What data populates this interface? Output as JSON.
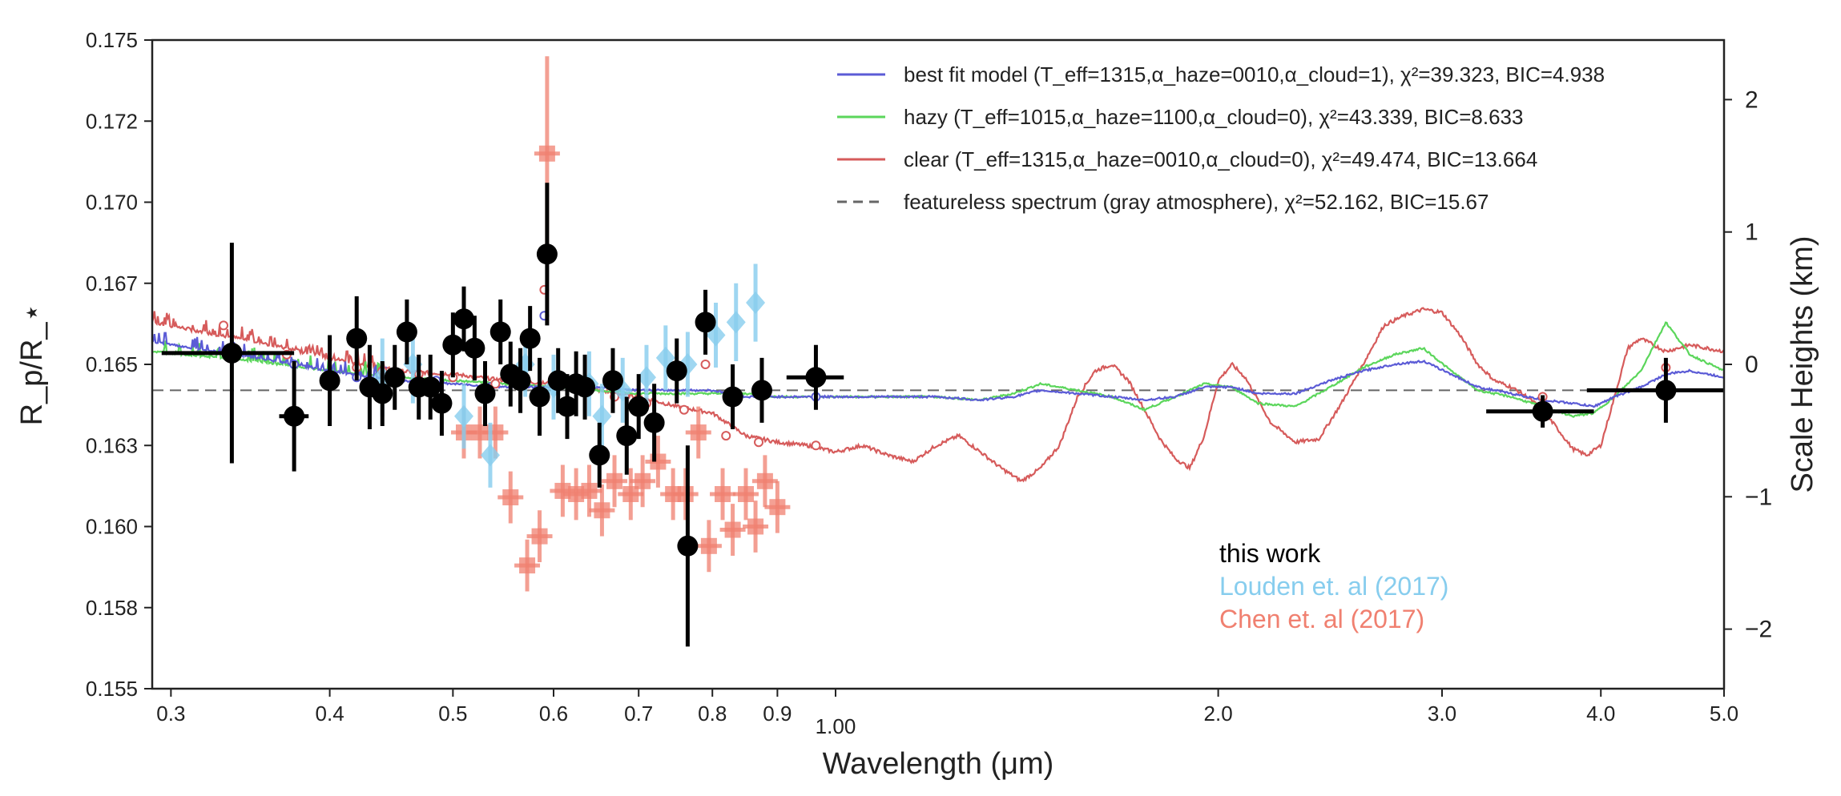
{
  "chart_data": {
    "type": "scatter",
    "xlabel": "Wavelength (μm)",
    "ylabel": "R_p/R_⋆",
    "y2label": "Scale Heights (km)",
    "xscale": "log",
    "xlim": [
      0.29,
      5.0
    ],
    "ylim": [
      0.155,
      0.175
    ],
    "y2lim": [
      -2.45,
      2.45
    ],
    "grid": false,
    "legend_position": "top-right",
    "x_ticks": [
      {
        "v": 0.3,
        "label": "0.3"
      },
      {
        "v": 0.4,
        "label": "0.4"
      },
      {
        "v": 0.5,
        "label": "0.5"
      },
      {
        "v": 0.6,
        "label": "0.6"
      },
      {
        "v": 0.7,
        "label": "0.7"
      },
      {
        "v": 0.8,
        "label": "0.8"
      },
      {
        "v": 0.9,
        "label": "0.9"
      },
      {
        "v": 1.0,
        "label": "1.00"
      },
      {
        "v": 2.0,
        "label": "2.0"
      },
      {
        "v": 3.0,
        "label": "3.0"
      },
      {
        "v": 4.0,
        "label": "4.0"
      },
      {
        "v": 5.0,
        "label": "5.0"
      }
    ],
    "y_ticks": [
      {
        "v": 0.155,
        "label": "0.155"
      },
      {
        "v": 0.1575,
        "label": "0.158"
      },
      {
        "v": 0.16,
        "label": "0.160"
      },
      {
        "v": 0.1625,
        "label": "0.163"
      },
      {
        "v": 0.165,
        "label": "0.165"
      },
      {
        "v": 0.1675,
        "label": "0.167"
      },
      {
        "v": 0.17,
        "label": "0.170"
      },
      {
        "v": 0.1725,
        "label": "0.172"
      },
      {
        "v": 0.175,
        "label": "0.175"
      }
    ],
    "y2_ticks": [
      {
        "v": -2,
        "label": "−2"
      },
      {
        "v": -1,
        "label": "−1"
      },
      {
        "v": 0,
        "label": "0"
      },
      {
        "v": 1,
        "label": "1"
      },
      {
        "v": 2,
        "label": "2"
      }
    ],
    "featureless_level": 0.1642,
    "legend": [
      {
        "key": "best",
        "color": "#5b5bd6",
        "dash": false,
        "text": "best fit model (T_eff=1315,α_haze=0010,α_cloud=1), χ²=39.323, BIC=4.938"
      },
      {
        "key": "hazy",
        "color": "#5bd65b",
        "dash": false,
        "text": "hazy (T_eff=1015,α_haze=1100,α_cloud=0), χ²=43.339, BIC=8.633"
      },
      {
        "key": "clear",
        "color": "#d65b5b",
        "dash": false,
        "text": "clear (T_eff=1315,α_haze=0010,α_cloud=0), χ²=49.474, BIC=13.664"
      },
      {
        "key": "flat",
        "color": "#666666",
        "dash": true,
        "text": "featureless spectrum (gray atmosphere), χ²=52.162, BIC=15.67"
      }
    ],
    "datasets_legend": [
      {
        "text": "this work",
        "color": "#000000"
      },
      {
        "text": "Louden et. al (2017)",
        "color": "#87cdee"
      },
      {
        "text": "Chen et. al (2017)",
        "color": "#f08070"
      }
    ],
    "models": {
      "best": {
        "color": "#5b5bd6",
        "x": [
          0.29,
          0.35,
          0.4,
          0.45,
          0.5,
          0.55,
          0.6,
          0.65,
          0.7,
          0.75,
          0.8,
          0.85,
          0.9,
          0.95,
          1.0,
          1.1,
          1.2,
          1.3,
          1.38,
          1.45,
          1.55,
          1.65,
          1.75,
          1.85,
          1.95,
          2.05,
          2.15,
          2.3,
          2.45,
          2.6,
          2.75,
          2.9,
          3.05,
          3.2,
          3.4,
          3.6,
          3.8,
          3.95,
          4.1,
          4.3,
          4.5,
          4.7,
          5.0
        ],
        "y": [
          0.1657,
          0.1652,
          0.1648,
          0.1645,
          0.1644,
          0.1643,
          0.1643,
          0.1643,
          0.1642,
          0.1642,
          0.1642,
          0.164,
          0.164,
          0.164,
          0.164,
          0.164,
          0.164,
          0.1639,
          0.164,
          0.1642,
          0.1641,
          0.164,
          0.1639,
          0.164,
          0.1643,
          0.1643,
          0.1641,
          0.1641,
          0.1645,
          0.1648,
          0.165,
          0.1651,
          0.1647,
          0.1643,
          0.1641,
          0.1639,
          0.1638,
          0.1637,
          0.164,
          0.1643,
          0.1647,
          0.1648,
          0.1646
        ]
      },
      "hazy": {
        "color": "#5bd65b",
        "x": [
          0.29,
          0.35,
          0.4,
          0.45,
          0.5,
          0.55,
          0.6,
          0.65,
          0.7,
          0.75,
          0.8,
          0.85,
          0.9,
          0.95,
          1.0,
          1.1,
          1.2,
          1.3,
          1.38,
          1.45,
          1.55,
          1.65,
          1.75,
          1.85,
          1.95,
          2.05,
          2.15,
          2.3,
          2.45,
          2.6,
          2.75,
          2.9,
          3.05,
          3.2,
          3.4,
          3.6,
          3.8,
          3.95,
          4.1,
          4.3,
          4.5,
          4.7,
          5.0
        ],
        "y": [
          0.1654,
          0.1651,
          0.1648,
          0.1646,
          0.1645,
          0.1644,
          0.1643,
          0.1642,
          0.1641,
          0.1641,
          0.1641,
          0.1641,
          0.164,
          0.164,
          0.164,
          0.164,
          0.164,
          0.1639,
          0.1641,
          0.1644,
          0.1642,
          0.164,
          0.1636,
          0.164,
          0.1644,
          0.1643,
          0.1638,
          0.1637,
          0.1643,
          0.1649,
          0.1653,
          0.1655,
          0.1648,
          0.1642,
          0.164,
          0.1637,
          0.1634,
          0.1635,
          0.164,
          0.1648,
          0.1663,
          0.1653,
          0.1648
        ]
      },
      "clear": {
        "color": "#d65b5b",
        "x": [
          0.29,
          0.35,
          0.4,
          0.45,
          0.5,
          0.55,
          0.6,
          0.65,
          0.7,
          0.75,
          0.8,
          0.85,
          0.9,
          0.95,
          1.0,
          1.05,
          1.1,
          1.15,
          1.2,
          1.25,
          1.3,
          1.35,
          1.4,
          1.45,
          1.5,
          1.55,
          1.6,
          1.65,
          1.7,
          1.75,
          1.8,
          1.85,
          1.9,
          1.95,
          2.0,
          2.05,
          2.1,
          2.2,
          2.3,
          2.4,
          2.5,
          2.6,
          2.7,
          2.8,
          2.9,
          3.0,
          3.1,
          3.2,
          3.3,
          3.4,
          3.5,
          3.6,
          3.7,
          3.8,
          3.9,
          4.0,
          4.1,
          4.2,
          4.3,
          4.5,
          4.7,
          5.0
        ],
        "y": [
          0.1663,
          0.1657,
          0.1652,
          0.1648,
          0.1647,
          0.1645,
          0.1644,
          0.1642,
          0.164,
          0.1637,
          0.1635,
          0.1628,
          0.1626,
          0.1625,
          0.1623,
          0.1625,
          0.1622,
          0.162,
          0.1625,
          0.1628,
          0.1623,
          0.1618,
          0.1614,
          0.1618,
          0.1625,
          0.164,
          0.1648,
          0.165,
          0.1645,
          0.1636,
          0.1627,
          0.1621,
          0.1618,
          0.1628,
          0.1645,
          0.165,
          0.1646,
          0.1632,
          0.1626,
          0.1627,
          0.1638,
          0.165,
          0.1662,
          0.1665,
          0.1667,
          0.1666,
          0.1659,
          0.165,
          0.1645,
          0.1643,
          0.164,
          0.1636,
          0.163,
          0.1624,
          0.1622,
          0.1625,
          0.164,
          0.1655,
          0.1658,
          0.1654,
          0.1656,
          0.1654
        ]
      }
    },
    "binned_models": {
      "best": {
        "color": "#5b5bd6",
        "x": [
          0.375,
          0.42,
          0.485,
          0.535,
          0.59,
          0.965
        ],
        "y": [
          0.165,
          0.1646,
          0.1645,
          0.1643,
          0.1665,
          0.164
        ]
      },
      "clear": {
        "color": "#d65b5b",
        "x": [
          0.33,
          0.37,
          0.42,
          0.44,
          0.47,
          0.5,
          0.54,
          0.59,
          0.63,
          0.67,
          0.71,
          0.76,
          0.79,
          0.82,
          0.87,
          0.965,
          3.6,
          4.5
        ],
        "y": [
          0.1662,
          0.1653,
          0.1649,
          0.1648,
          0.1647,
          0.1646,
          0.1644,
          0.1673,
          0.1643,
          0.164,
          0.1638,
          0.1636,
          0.165,
          0.1628,
          0.1626,
          0.1625,
          0.164,
          0.1649
        ]
      }
    },
    "series": [
      {
        "name": "this work",
        "color": "#000000",
        "points": [
          {
            "x": 0.335,
            "y": 0.16535,
            "xerr": 0.04,
            "yerr": 0.0034
          },
          {
            "x": 0.375,
            "y": 0.1634,
            "xerr": 0.01,
            "yerr": 0.0017
          },
          {
            "x": 0.4,
            "y": 0.1645,
            "xerr": 0,
            "yerr": 0.0014
          },
          {
            "x": 0.42,
            "y": 0.1658,
            "xerr": 0,
            "yerr": 0.0013
          },
          {
            "x": 0.43,
            "y": 0.1643,
            "xerr": 0,
            "yerr": 0.0013
          },
          {
            "x": 0.44,
            "y": 0.1641,
            "xerr": 0,
            "yerr": 0.001
          },
          {
            "x": 0.45,
            "y": 0.1646,
            "xerr": 0,
            "yerr": 0.001
          },
          {
            "x": 0.46,
            "y": 0.166,
            "xerr": 0,
            "yerr": 0.001
          },
          {
            "x": 0.47,
            "y": 0.1643,
            "xerr": 0,
            "yerr": 0.001
          },
          {
            "x": 0.48,
            "y": 0.1643,
            "xerr": 0,
            "yerr": 0.001
          },
          {
            "x": 0.49,
            "y": 0.1638,
            "xerr": 0,
            "yerr": 0.001
          },
          {
            "x": 0.5,
            "y": 0.1656,
            "xerr": 0,
            "yerr": 0.001
          },
          {
            "x": 0.51,
            "y": 0.1664,
            "xerr": 0,
            "yerr": 0.001
          },
          {
            "x": 0.52,
            "y": 0.1655,
            "xerr": 0,
            "yerr": 0.001
          },
          {
            "x": 0.53,
            "y": 0.1641,
            "xerr": 0,
            "yerr": 0.001
          },
          {
            "x": 0.545,
            "y": 0.166,
            "xerr": 0,
            "yerr": 0.001
          },
          {
            "x": 0.555,
            "y": 0.1647,
            "xerr": 0,
            "yerr": 0.001
          },
          {
            "x": 0.565,
            "y": 0.1645,
            "xerr": 0,
            "yerr": 0.001
          },
          {
            "x": 0.575,
            "y": 0.1658,
            "xerr": 0,
            "yerr": 0.001
          },
          {
            "x": 0.585,
            "y": 0.164,
            "xerr": 0,
            "yerr": 0.0012
          },
          {
            "x": 0.593,
            "y": 0.1684,
            "xerr": 0,
            "yerr": 0.0022
          },
          {
            "x": 0.605,
            "y": 0.1645,
            "xerr": 0,
            "yerr": 0.001
          },
          {
            "x": 0.615,
            "y": 0.1637,
            "xerr": 0,
            "yerr": 0.001
          },
          {
            "x": 0.625,
            "y": 0.1644,
            "xerr": 0,
            "yerr": 0.001
          },
          {
            "x": 0.635,
            "y": 0.1643,
            "xerr": 0,
            "yerr": 0.001
          },
          {
            "x": 0.652,
            "y": 0.1622,
            "xerr": 0,
            "yerr": 0.001
          },
          {
            "x": 0.668,
            "y": 0.1645,
            "xerr": 0,
            "yerr": 0.001
          },
          {
            "x": 0.685,
            "y": 0.1628,
            "xerr": 0,
            "yerr": 0.0012
          },
          {
            "x": 0.7,
            "y": 0.1637,
            "xerr": 0,
            "yerr": 0.001
          },
          {
            "x": 0.72,
            "y": 0.1632,
            "xerr": 0,
            "yerr": 0.0012
          },
          {
            "x": 0.75,
            "y": 0.1648,
            "xerr": 0,
            "yerr": 0.001
          },
          {
            "x": 0.765,
            "y": 0.1594,
            "xerr": 0,
            "yerr": 0.0031
          },
          {
            "x": 0.79,
            "y": 0.1663,
            "xerr": 0,
            "yerr": 0.001
          },
          {
            "x": 0.83,
            "y": 0.164,
            "xerr": 0,
            "yerr": 0.001
          },
          {
            "x": 0.875,
            "y": 0.1642,
            "xerr": 0,
            "yerr": 0.001
          },
          {
            "x": 0.965,
            "y": 0.1646,
            "xerr": 0.05,
            "yerr": 0.001
          },
          {
            "x": 3.6,
            "y": 0.16355,
            "xerr": 0.35,
            "yerr": 0.0005
          },
          {
            "x": 4.5,
            "y": 0.1642,
            "xerr": 0.6,
            "yerr": 0.001
          }
        ]
      },
      {
        "name": "Louden et. al (2017)",
        "color": "#87cdee",
        "points": [
          {
            "x": 0.44,
            "y": 0.1646,
            "yerr": 0.0012
          },
          {
            "x": 0.465,
            "y": 0.165,
            "yerr": 0.0012
          },
          {
            "x": 0.51,
            "y": 0.1634,
            "yerr": 0.001
          },
          {
            "x": 0.535,
            "y": 0.1622,
            "yerr": 0.001
          },
          {
            "x": 0.57,
            "y": 0.165,
            "yerr": 0.001
          },
          {
            "x": 0.6,
            "y": 0.1643,
            "yerr": 0.001
          },
          {
            "x": 0.64,
            "y": 0.1644,
            "yerr": 0.001
          },
          {
            "x": 0.655,
            "y": 0.1634,
            "yerr": 0.001
          },
          {
            "x": 0.68,
            "y": 0.1642,
            "yerr": 0.001
          },
          {
            "x": 0.71,
            "y": 0.1646,
            "yerr": 0.001
          },
          {
            "x": 0.735,
            "y": 0.1652,
            "yerr": 0.001
          },
          {
            "x": 0.765,
            "y": 0.165,
            "yerr": 0.001
          },
          {
            "x": 0.805,
            "y": 0.1659,
            "yerr": 0.001
          },
          {
            "x": 0.835,
            "y": 0.1663,
            "yerr": 0.0012
          },
          {
            "x": 0.865,
            "y": 0.1669,
            "yerr": 0.0012
          }
        ]
      },
      {
        "name": "Chen et. al (2017)",
        "color": "#f08070",
        "points": [
          {
            "x": 0.51,
            "y": 0.1629,
            "yerr": 0.0008
          },
          {
            "x": 0.525,
            "y": 0.1629,
            "yerr": 0.0008
          },
          {
            "x": 0.54,
            "y": 0.1629,
            "yerr": 0.0008
          },
          {
            "x": 0.555,
            "y": 0.1609,
            "yerr": 0.0008
          },
          {
            "x": 0.572,
            "y": 0.1588,
            "yerr": 0.0008
          },
          {
            "x": 0.585,
            "y": 0.1597,
            "yerr": 0.0008
          },
          {
            "x": 0.593,
            "y": 0.1715,
            "yerr": 0.003
          },
          {
            "x": 0.61,
            "y": 0.1611,
            "yerr": 0.0008
          },
          {
            "x": 0.625,
            "y": 0.161,
            "yerr": 0.0008
          },
          {
            "x": 0.64,
            "y": 0.1611,
            "yerr": 0.0008
          },
          {
            "x": 0.655,
            "y": 0.1605,
            "yerr": 0.0008
          },
          {
            "x": 0.67,
            "y": 0.1614,
            "yerr": 0.0008
          },
          {
            "x": 0.69,
            "y": 0.161,
            "yerr": 0.0008
          },
          {
            "x": 0.705,
            "y": 0.1614,
            "yerr": 0.0008
          },
          {
            "x": 0.725,
            "y": 0.162,
            "yerr": 0.0008
          },
          {
            "x": 0.745,
            "y": 0.161,
            "yerr": 0.0008
          },
          {
            "x": 0.762,
            "y": 0.161,
            "yerr": 0.0008
          },
          {
            "x": 0.78,
            "y": 0.1629,
            "yerr": 0.0008
          },
          {
            "x": 0.795,
            "y": 0.1594,
            "yerr": 0.0008
          },
          {
            "x": 0.815,
            "y": 0.161,
            "yerr": 0.0008
          },
          {
            "x": 0.83,
            "y": 0.1599,
            "yerr": 0.0008
          },
          {
            "x": 0.85,
            "y": 0.161,
            "yerr": 0.0008
          },
          {
            "x": 0.865,
            "y": 0.16,
            "yerr": 0.0008
          },
          {
            "x": 0.88,
            "y": 0.1614,
            "yerr": 0.0008
          },
          {
            "x": 0.9,
            "y": 0.1606,
            "yerr": 0.0008
          }
        ]
      }
    ]
  }
}
